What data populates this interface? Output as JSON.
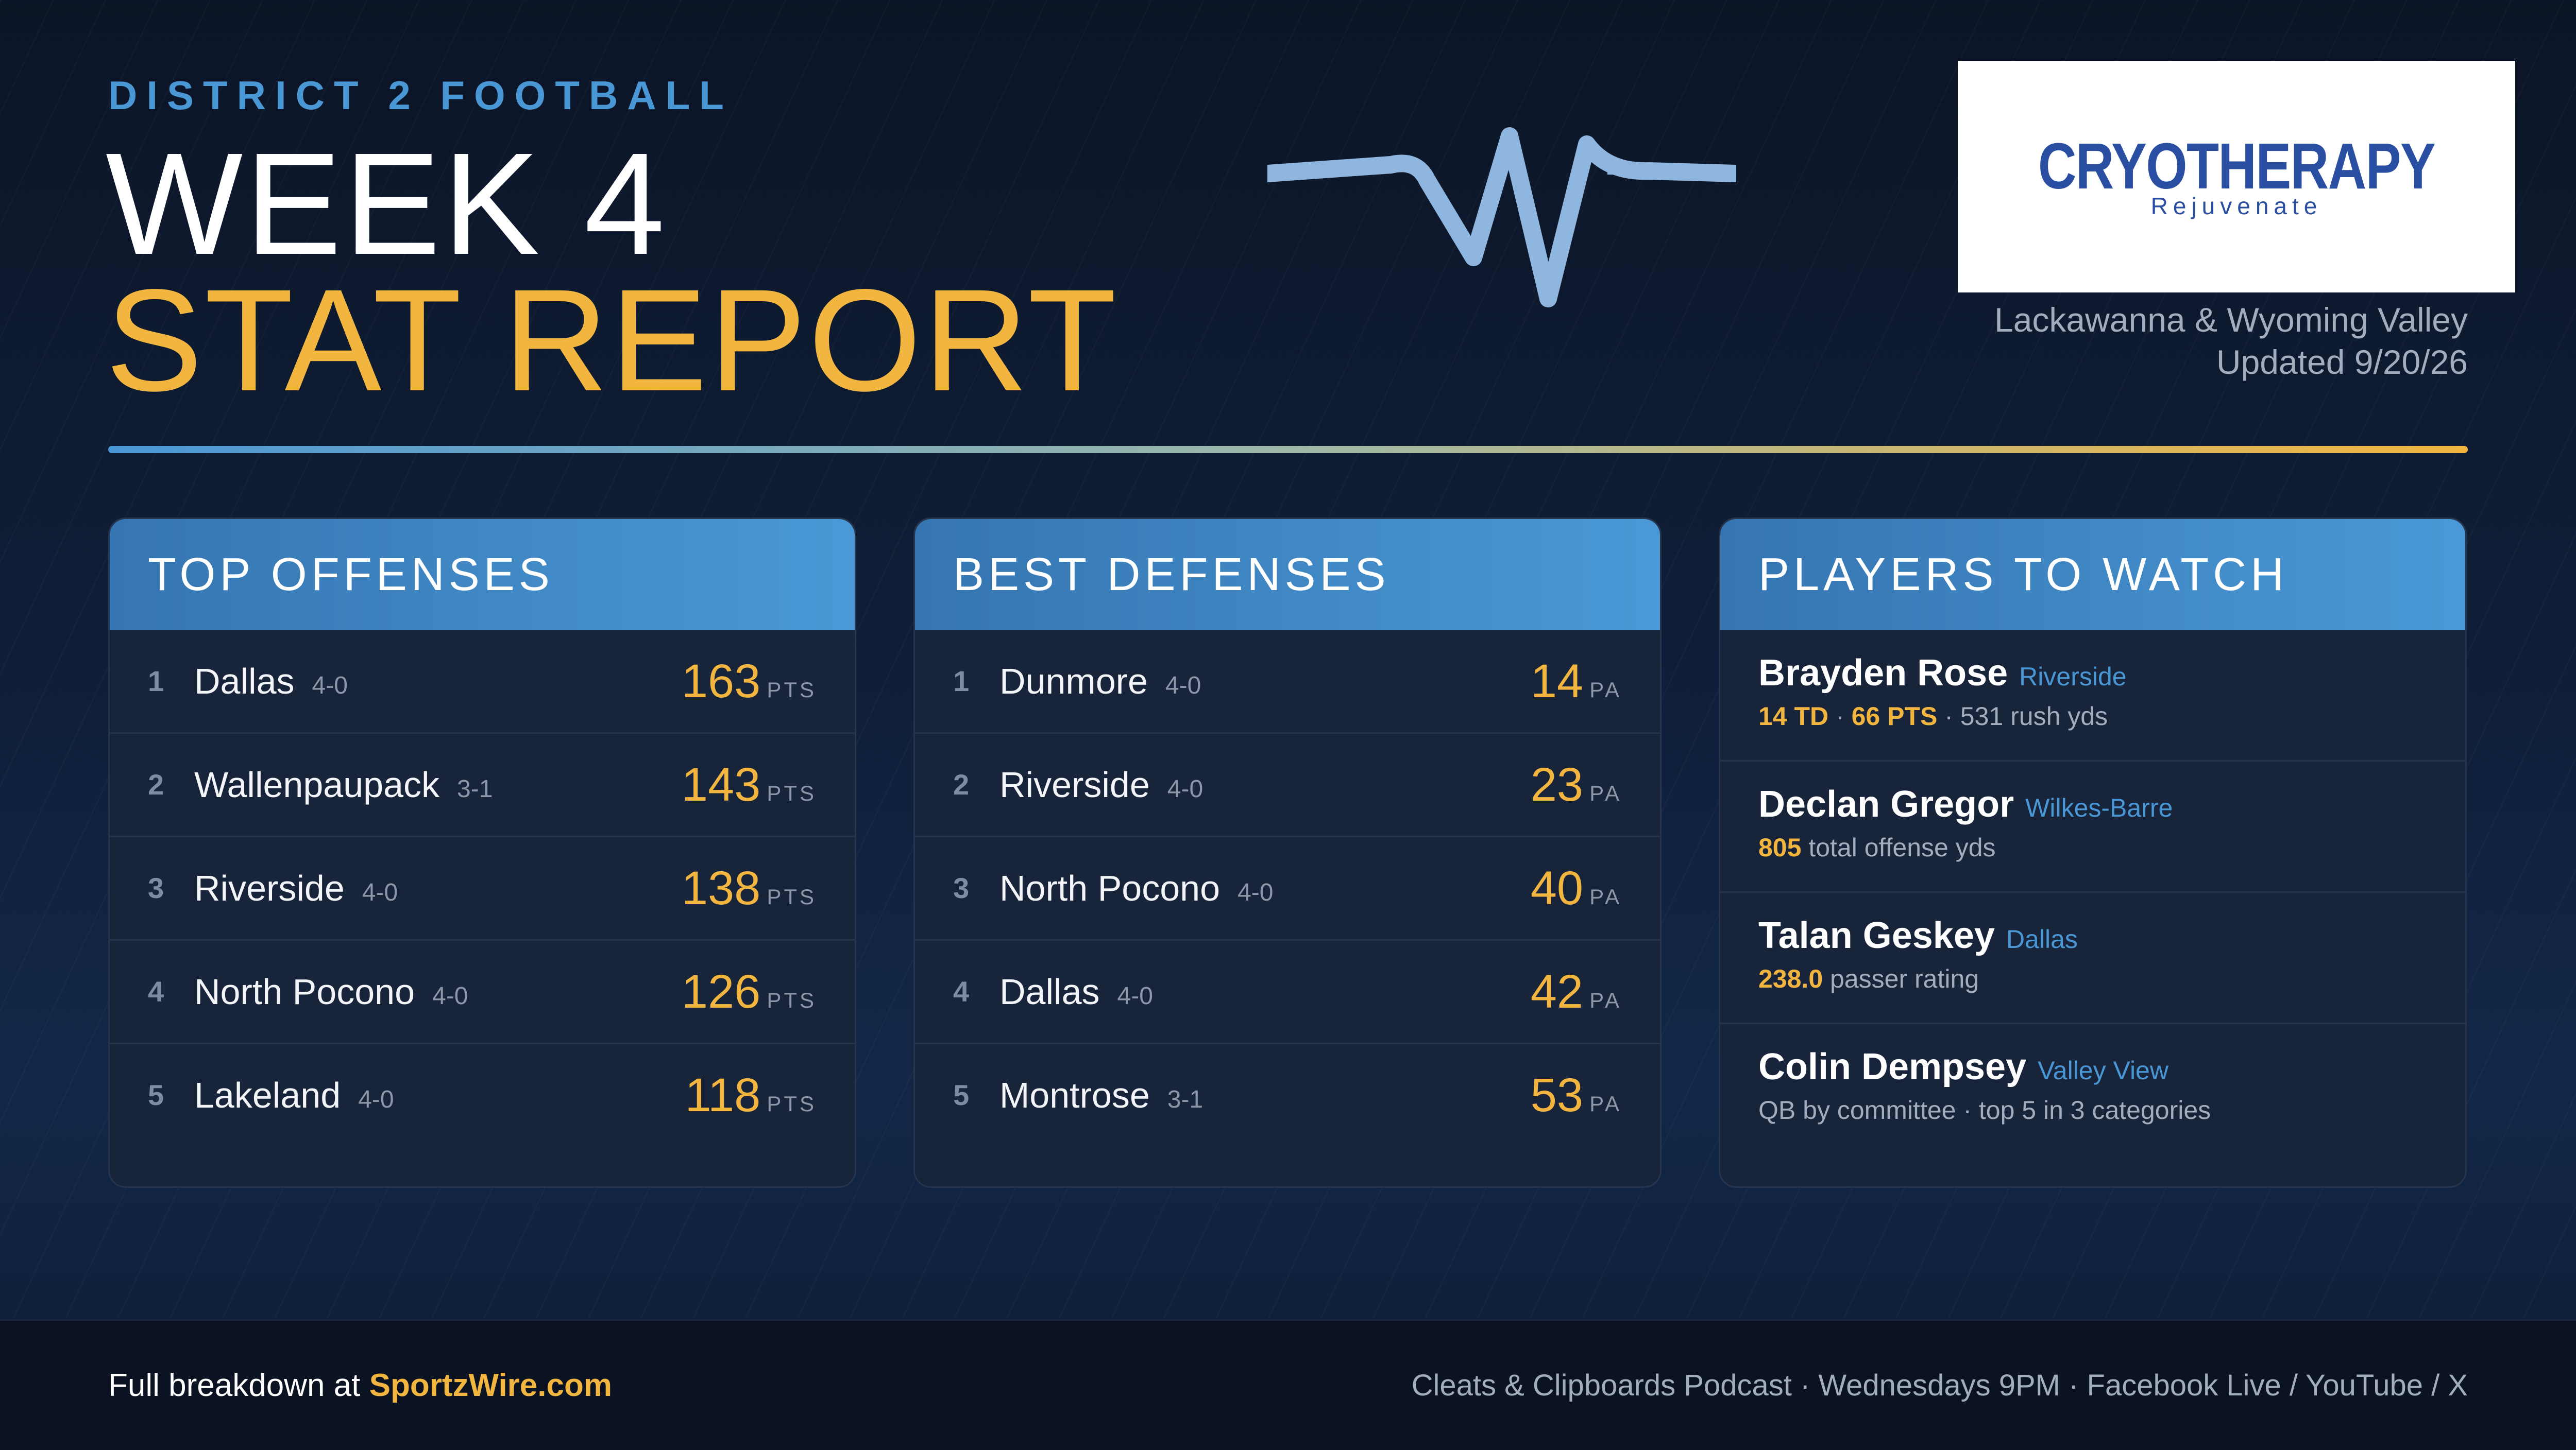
{
  "header": {
    "eyebrow": "DISTRICT 2 FOOTBALL",
    "title_line1": "WEEK 4",
    "title_line2": "STAT REPORT",
    "pulse_icon": "heartbeat-pulse-icon",
    "region": "Lackawanna & Wyoming Valley",
    "updated": "Updated 9/20/26"
  },
  "sponsor": {
    "name": "CRYOTHERAPY",
    "tagline": "Rejuvenate"
  },
  "offenses": {
    "title": "TOP OFFENSES",
    "unit": "PTS",
    "rows": [
      {
        "rank": "1",
        "team": "Dallas",
        "record": "4-0",
        "value": "163"
      },
      {
        "rank": "2",
        "team": "Wallenpaupack",
        "record": "3-1",
        "value": "143"
      },
      {
        "rank": "3",
        "team": "Riverside",
        "record": "4-0",
        "value": "138"
      },
      {
        "rank": "4",
        "team": "North Pocono",
        "record": "4-0",
        "value": "126"
      },
      {
        "rank": "5",
        "team": "Lakeland",
        "record": "4-0",
        "value": "118"
      }
    ]
  },
  "defenses": {
    "title": "BEST DEFENSES",
    "unit": "PA",
    "rows": [
      {
        "rank": "1",
        "team": "Dunmore",
        "record": "4-0",
        "value": "14"
      },
      {
        "rank": "2",
        "team": "Riverside",
        "record": "4-0",
        "value": "23"
      },
      {
        "rank": "3",
        "team": "North Pocono",
        "record": "4-0",
        "value": "40"
      },
      {
        "rank": "4",
        "team": "Dallas",
        "record": "4-0",
        "value": "42"
      },
      {
        "rank": "5",
        "team": "Montrose",
        "record": "3-1",
        "value": "53"
      }
    ]
  },
  "players": {
    "title": "PLAYERS TO WATCH",
    "rows": [
      {
        "name": "Brayden Rose",
        "school": "Riverside",
        "hl1": "14 TD",
        "sep1": " · ",
        "hl2": "66 PTS",
        "rest": " · 531 rush yds"
      },
      {
        "name": "Declan Gregor",
        "school": "Wilkes-Barre",
        "hl1": "805",
        "sep1": "",
        "hl2": "",
        "rest": " total offense yds"
      },
      {
        "name": "Talan Geskey",
        "school": "Dallas",
        "hl1": "238.0",
        "sep1": "",
        "hl2": "",
        "rest": " passer rating"
      },
      {
        "name": "Colin Dempsey",
        "school": "Valley View",
        "hl1": "",
        "sep1": "",
        "hl2": "",
        "rest": "QB by committee · top 5 in 3 categories"
      }
    ]
  },
  "footer": {
    "lead": "Full breakdown at ",
    "link": "SportzWire.com",
    "podcast": "Cleats & Clipboards Podcast · Wednesdays 9PM · Facebook Live / YouTube / X"
  },
  "colors": {
    "accent_blue": "#4a97d6",
    "accent_gold": "#f2b640",
    "background": "#0f1e38",
    "sponsor_blue": "#2a4ea2"
  }
}
